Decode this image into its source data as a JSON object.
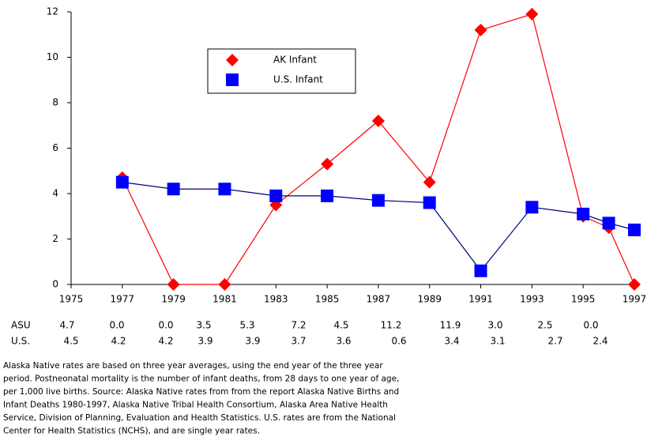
{
  "chart_data": {
    "type": "line",
    "x": [
      1977,
      1979,
      1981,
      1983,
      1985,
      1987,
      1989,
      1991,
      1993,
      1995,
      1996,
      1997
    ],
    "series": [
      {
        "name": "AK Infant",
        "color": "#ff0000",
        "line_color": "#ff0000",
        "marker": "diamond",
        "values": [
          4.7,
          0,
          0,
          3.5,
          5.3,
          7.2,
          4.5,
          11.2,
          11.9,
          3.0,
          2.5,
          0
        ],
        "value_labels": [
          "4.7",
          "0.0",
          "0.0",
          "3.5",
          "5.3",
          "7.2",
          "4.5",
          "11.2",
          "11.9",
          "3.0",
          "2.5",
          "0.0"
        ]
      },
      {
        "name": "U.S. Infant",
        "color": "#0000ff",
        "line_color": "#000080",
        "marker": "square",
        "values": [
          4.5,
          4.2,
          4.2,
          3.9,
          3.9,
          3.7,
          3.6,
          0.6,
          3.4,
          3.1,
          2.7,
          2.4
        ],
        "value_labels": [
          "4.5",
          "4.2",
          "4.2",
          "3.9",
          "3.9",
          "3.7",
          "3.6",
          "0.6",
          "3.4",
          "3.1",
          "2.7",
          "2.4"
        ]
      }
    ],
    "xlim": [
      1975,
      1997
    ],
    "xticks": [
      1975,
      1977,
      1979,
      1981,
      1983,
      1985,
      1987,
      1989,
      1991,
      1993,
      1995,
      1997
    ],
    "ylim": [
      0,
      12
    ],
    "yticks": [
      0,
      2,
      4,
      6,
      8,
      10,
      12
    ],
    "table_row_labels": [
      "ASU",
      "U.S."
    ],
    "note_lines": [
      "Alaska Native rates are based on three year averages, using the end year of the three year",
      "period.  Postneonatal mortality is the number of infant deaths, from 28 days to one year of age,",
      "per 1,000 live births.  Source:  Alaska Native rates from from the report Alaska Native Births and",
      "Infant Deaths 1980-1997, Alaska Native Tribal Health Consortium, Alaska Area Native Health",
      "Service, Division of Planning, Evaluation and Health Statistics.  U.S. rates are from the National",
      "Center for Health Statistics (NCHS), and are single year rates."
    ]
  }
}
